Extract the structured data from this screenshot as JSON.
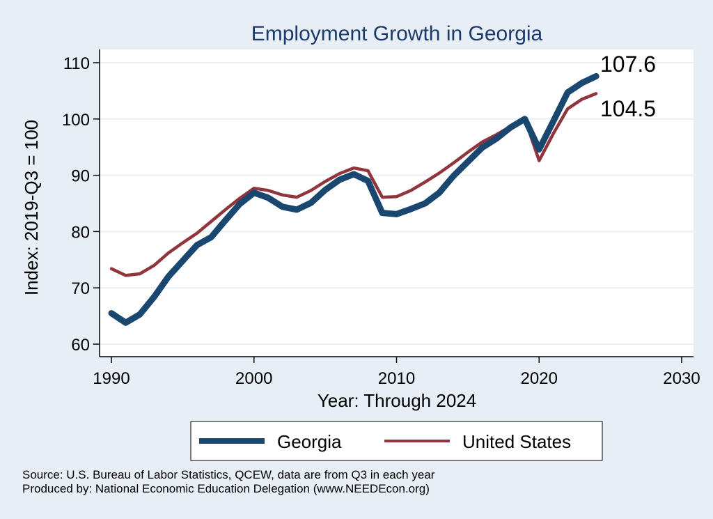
{
  "chart_data": {
    "type": "line",
    "title": "Employment Growth in Georgia",
    "xlabel": "Year: Through 2024",
    "ylabel": "Index: 2019-Q3 = 100",
    "xlim": [
      1990,
      2030
    ],
    "ylim": [
      60,
      110
    ],
    "x_ticks": [
      1990,
      2000,
      2010,
      2020,
      2030
    ],
    "y_ticks": [
      60,
      70,
      80,
      90,
      100,
      110
    ],
    "grid": true,
    "legend_position": "bottom",
    "x": [
      1990,
      1991,
      1992,
      1993,
      1994,
      1995,
      1996,
      1997,
      1998,
      1999,
      2000,
      2001,
      2002,
      2003,
      2004,
      2005,
      2006,
      2007,
      2008,
      2009,
      2010,
      2011,
      2012,
      2013,
      2014,
      2015,
      2016,
      2017,
      2018,
      2019,
      2020,
      2021,
      2022,
      2023,
      2024
    ],
    "series": [
      {
        "name": "Georgia",
        "color": "#1a476f",
        "values": [
          65.5,
          63.8,
          65.3,
          68.4,
          72.0,
          74.8,
          77.6,
          79.0,
          82.0,
          84.9,
          86.9,
          86.0,
          84.4,
          83.9,
          85.1,
          87.4,
          89.2,
          90.2,
          89.0,
          83.3,
          83.1,
          84.0,
          85.0,
          86.9,
          89.9,
          92.4,
          94.9,
          96.5,
          98.5,
          100.0,
          94.6,
          99.6,
          104.7,
          106.4,
          107.6
        ],
        "end_label": "107.6"
      },
      {
        "name": "United States",
        "color": "#90353b",
        "values": [
          73.4,
          72.2,
          72.5,
          74.0,
          76.2,
          78.0,
          79.7,
          81.8,
          83.9,
          85.9,
          87.7,
          87.3,
          86.5,
          86.1,
          87.3,
          88.9,
          90.3,
          91.3,
          90.8,
          86.1,
          86.2,
          87.3,
          88.8,
          90.4,
          92.2,
          94.1,
          95.9,
          97.2,
          98.7,
          100.0,
          92.6,
          97.4,
          101.8,
          103.5,
          104.5
        ],
        "end_label": "104.5"
      }
    ]
  },
  "colors": {
    "background": "#e8eef5",
    "plot_background": "#ffffff",
    "title": "#1a3a6b",
    "grid": "#e9eff5"
  },
  "footer": {
    "source": "Source: U.S. Bureau of Labor Statistics, QCEW, data are from Q3 in each year",
    "produced": "Produced by: National Economic Education Delegation (www.NEEDEcon.org)"
  }
}
